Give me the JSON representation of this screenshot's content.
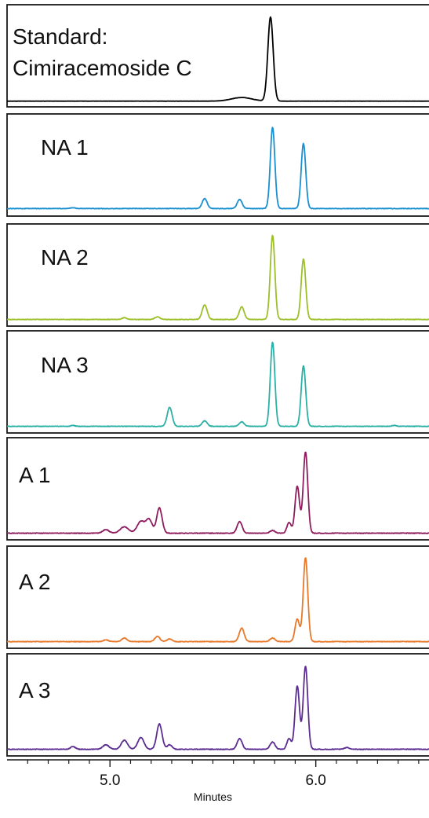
{
  "chart_data": {
    "type": "line",
    "xlabel": "Minutes",
    "xlim": [
      4.5,
      6.55
    ],
    "x_ticks": [
      {
        "value": 5.0,
        "label": "5.0"
      },
      {
        "value": 6.0,
        "label": "6.0"
      }
    ],
    "x_minor_ticks": [
      4.6,
      4.7,
      4.8,
      4.9,
      5.1,
      5.2,
      5.3,
      5.4,
      5.5,
      5.6,
      5.7,
      5.8,
      5.9,
      6.1,
      6.2,
      6.3,
      6.4,
      6.5
    ],
    "series": [
      {
        "name": "Standard:\nCimiracemoside C",
        "color": "#000000",
        "baseline": 0.02,
        "noise": 0.002,
        "peaks": [
          {
            "x": 5.64,
            "height": 0.04,
            "width": 0.05
          },
          {
            "x": 5.78,
            "height": 0.93,
            "width": 0.013
          }
        ]
      },
      {
        "name": "NA 1",
        "color": "#1b8fcf",
        "baseline": 0.04,
        "noise": 0.006,
        "peaks": [
          {
            "x": 4.82,
            "height": 0.01,
            "width": 0.01
          },
          {
            "x": 5.46,
            "height": 0.11,
            "width": 0.012
          },
          {
            "x": 5.63,
            "height": 0.1,
            "width": 0.012
          },
          {
            "x": 5.79,
            "height": 0.9,
            "width": 0.011
          },
          {
            "x": 5.94,
            "height": 0.72,
            "width": 0.011
          }
        ]
      },
      {
        "name": "NA 2",
        "color": "#9cbf2a",
        "baseline": 0.03,
        "noise": 0.006,
        "peaks": [
          {
            "x": 5.07,
            "height": 0.02,
            "width": 0.01
          },
          {
            "x": 5.23,
            "height": 0.03,
            "width": 0.012
          },
          {
            "x": 5.46,
            "height": 0.16,
            "width": 0.012
          },
          {
            "x": 5.64,
            "height": 0.14,
            "width": 0.012
          },
          {
            "x": 5.79,
            "height": 0.93,
            "width": 0.011
          },
          {
            "x": 5.94,
            "height": 0.67,
            "width": 0.011
          }
        ]
      },
      {
        "name": "NA 3",
        "color": "#2bb0a5",
        "baseline": 0.03,
        "noise": 0.006,
        "peaks": [
          {
            "x": 4.82,
            "height": 0.01,
            "width": 0.01
          },
          {
            "x": 5.29,
            "height": 0.21,
            "width": 0.012
          },
          {
            "x": 5.46,
            "height": 0.06,
            "width": 0.012
          },
          {
            "x": 5.64,
            "height": 0.05,
            "width": 0.012
          },
          {
            "x": 5.79,
            "height": 0.93,
            "width": 0.011
          },
          {
            "x": 5.94,
            "height": 0.67,
            "width": 0.011
          },
          {
            "x": 6.38,
            "height": 0.01,
            "width": 0.01
          }
        ]
      },
      {
        "name": "A 1",
        "color": "#8e1d5e",
        "baseline": 0.03,
        "noise": 0.007,
        "peaks": [
          {
            "x": 4.98,
            "height": 0.04,
            "width": 0.015
          },
          {
            "x": 5.07,
            "height": 0.07,
            "width": 0.02
          },
          {
            "x": 5.15,
            "height": 0.13,
            "width": 0.018
          },
          {
            "x": 5.19,
            "height": 0.15,
            "width": 0.015
          },
          {
            "x": 5.24,
            "height": 0.28,
            "width": 0.013
          },
          {
            "x": 5.63,
            "height": 0.13,
            "width": 0.012
          },
          {
            "x": 5.79,
            "height": 0.03,
            "width": 0.012
          },
          {
            "x": 5.87,
            "height": 0.12,
            "width": 0.01
          },
          {
            "x": 5.91,
            "height": 0.52,
            "width": 0.011
          },
          {
            "x": 5.95,
            "height": 0.9,
            "width": 0.011
          }
        ]
      },
      {
        "name": "A 2",
        "color": "#e8792b",
        "baseline": 0.03,
        "noise": 0.007,
        "peaks": [
          {
            "x": 4.98,
            "height": 0.02,
            "width": 0.012
          },
          {
            "x": 5.07,
            "height": 0.04,
            "width": 0.012
          },
          {
            "x": 5.23,
            "height": 0.06,
            "width": 0.012
          },
          {
            "x": 5.29,
            "height": 0.03,
            "width": 0.012
          },
          {
            "x": 5.64,
            "height": 0.15,
            "width": 0.012
          },
          {
            "x": 5.79,
            "height": 0.04,
            "width": 0.012
          },
          {
            "x": 5.91,
            "height": 0.25,
            "width": 0.011
          },
          {
            "x": 5.95,
            "height": 0.93,
            "width": 0.011
          }
        ]
      },
      {
        "name": "A 3",
        "color": "#5b2d91",
        "baseline": 0.03,
        "noise": 0.007,
        "peaks": [
          {
            "x": 4.82,
            "height": 0.03,
            "width": 0.012
          },
          {
            "x": 4.98,
            "height": 0.05,
            "width": 0.015
          },
          {
            "x": 5.07,
            "height": 0.1,
            "width": 0.015
          },
          {
            "x": 5.15,
            "height": 0.13,
            "width": 0.015
          },
          {
            "x": 5.24,
            "height": 0.28,
            "width": 0.013
          },
          {
            "x": 5.29,
            "height": 0.05,
            "width": 0.012
          },
          {
            "x": 5.63,
            "height": 0.12,
            "width": 0.012
          },
          {
            "x": 5.79,
            "height": 0.08,
            "width": 0.012
          },
          {
            "x": 5.87,
            "height": 0.12,
            "width": 0.01
          },
          {
            "x": 5.91,
            "height": 0.7,
            "width": 0.011
          },
          {
            "x": 5.95,
            "height": 0.92,
            "width": 0.011
          },
          {
            "x": 6.15,
            "height": 0.02,
            "width": 0.012
          }
        ]
      }
    ]
  }
}
